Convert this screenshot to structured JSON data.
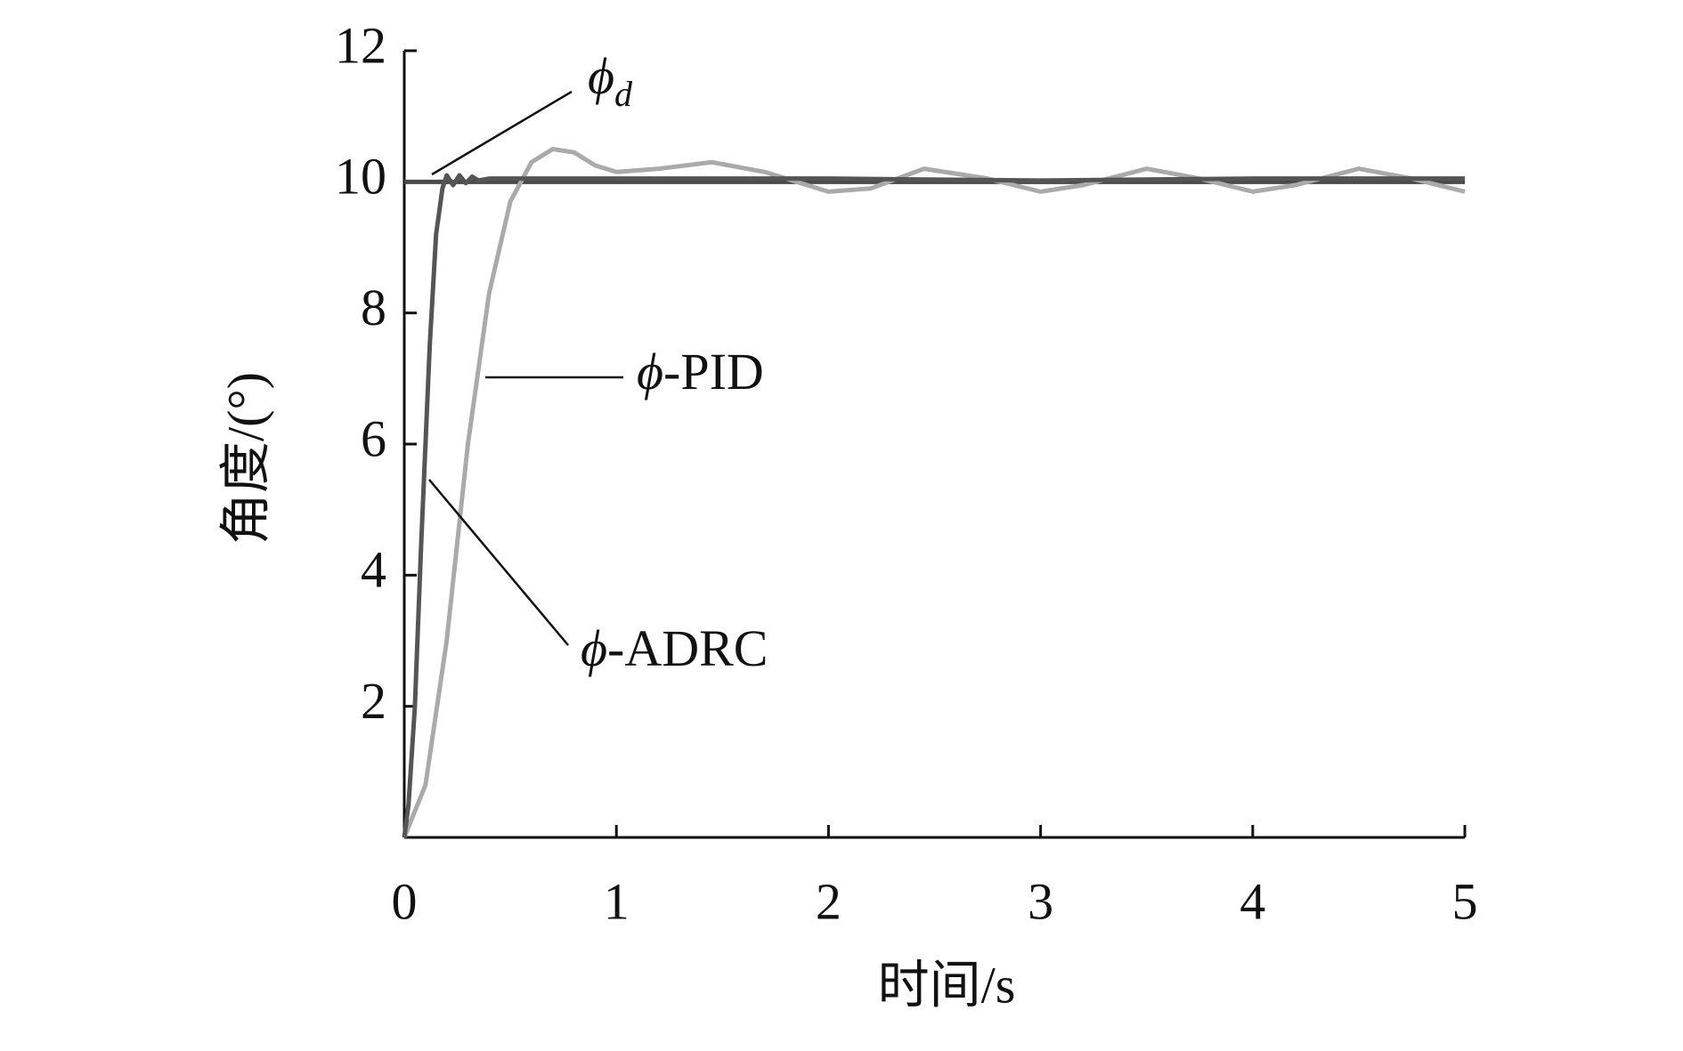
{
  "chart_data": {
    "type": "line",
    "xlabel": "时间/s",
    "ylabel": "角度/(°)",
    "xlim": [
      0,
      5
    ],
    "xticks": [
      0,
      1,
      2,
      3,
      4,
      5
    ],
    "ylim": [
      0,
      12
    ],
    "yticks": [
      2,
      4,
      6,
      8,
      10,
      12
    ],
    "series": [
      {
        "name": "ϕd",
        "color": "#4a4a4a",
        "x": [
          0,
          5
        ],
        "values": [
          10,
          10
        ]
      },
      {
        "name": "ϕ-PID",
        "color": "#aaaaaa",
        "x": [
          0,
          0.1,
          0.2,
          0.3,
          0.4,
          0.5,
          0.6,
          0.7,
          0.8,
          0.9,
          1.0,
          1.2,
          1.45,
          1.7,
          2.0,
          2.2,
          2.45,
          2.75,
          3.0,
          3.2,
          3.5,
          3.75,
          4.0,
          4.2,
          4.5,
          4.75,
          5.0
        ],
        "values": [
          0,
          0.8,
          3,
          6,
          8.3,
          9.7,
          10.3,
          10.5,
          10.45,
          10.25,
          10.15,
          10.2,
          10.3,
          10.15,
          9.85,
          9.9,
          10.2,
          10.05,
          9.85,
          9.95,
          10.2,
          10.05,
          9.85,
          9.95,
          10.2,
          10.05,
          9.85
        ]
      },
      {
        "name": "ϕ-ADRC",
        "color": "#555555",
        "x": [
          0,
          0.02,
          0.05,
          0.08,
          0.1,
          0.12,
          0.15,
          0.18,
          0.2,
          0.23,
          0.26,
          0.29,
          0.32,
          0.35,
          0.4,
          0.5,
          1,
          2,
          3,
          4,
          5
        ],
        "values": [
          0,
          0.5,
          2,
          4.5,
          6,
          7.5,
          9.2,
          9.9,
          10.1,
          9.95,
          10.1,
          9.98,
          10.08,
          10.02,
          10.05,
          10.05,
          10.05,
          10.05,
          10.02,
          10.05,
          10.05
        ]
      }
    ]
  }
}
